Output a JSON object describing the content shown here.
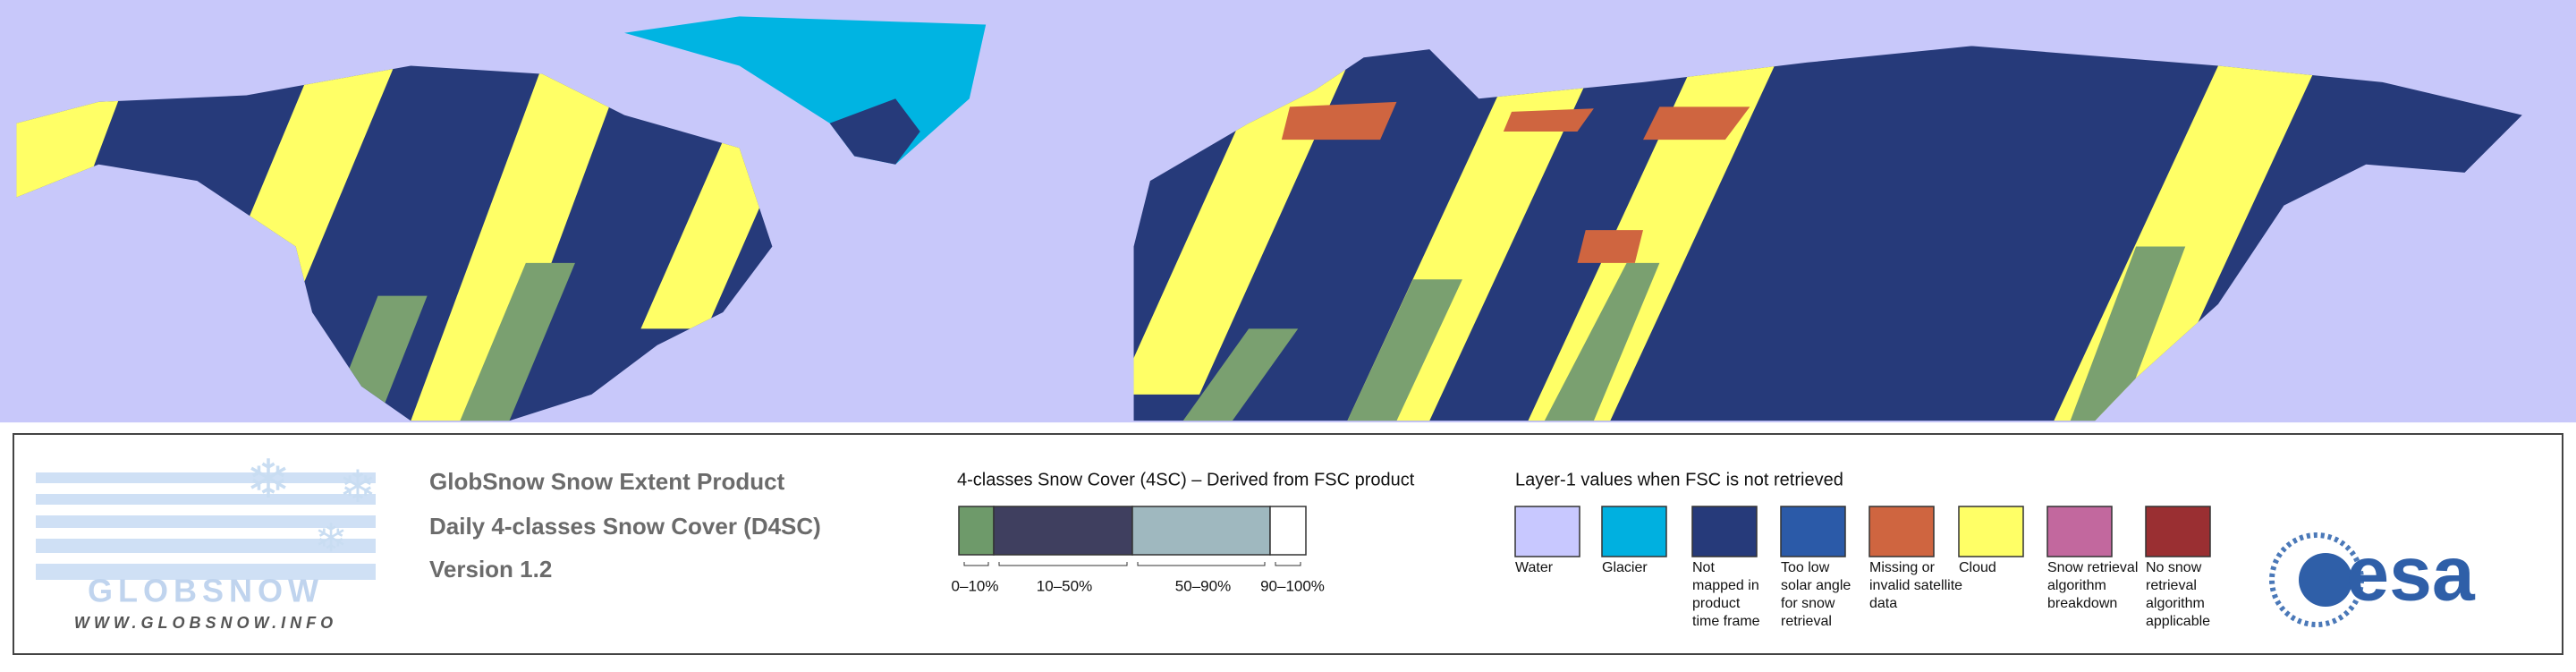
{
  "logo": {
    "name": "GLOBSNOW",
    "url": "WWW.GLOBSNOW.INFO"
  },
  "product": {
    "title": "GlobSnow Snow Extent Product",
    "subtitle": "Daily 4-classes Snow Cover (D4SC)",
    "version": "Version 1.2"
  },
  "colorbar": {
    "title": "4-classes Snow Cover (4SC) – Derived from FSC product",
    "classes": [
      {
        "label": "0–10%",
        "color": "#6e9a6a"
      },
      {
        "label": "10–50%",
        "color": "#3f3f5f"
      },
      {
        "label": "50–90%",
        "color": "#9fb8bf"
      },
      {
        "label": "90–100%",
        "color": "#ffffff"
      }
    ]
  },
  "layer1": {
    "title": "Layer-1 values when FSC is not retrieved",
    "items": [
      {
        "color": "#c8c8ff",
        "lines": [
          "Water"
        ]
      },
      {
        "color": "#00b0e0",
        "lines": [
          "Glacier"
        ]
      },
      {
        "color": "#263a7a",
        "lines": [
          "Not",
          "mapped in",
          "product",
          "time frame"
        ]
      },
      {
        "color": "#2b5aa8",
        "lines": [
          "Too low",
          "solar angle",
          "for snow",
          "retrieval"
        ]
      },
      {
        "color": "#cf6540",
        "lines": [
          "Missing or",
          "invalid satellite",
          "data"
        ]
      },
      {
        "color": "#ffff66",
        "lines": [
          "Cloud"
        ]
      },
      {
        "color": "#c2689e",
        "lines": [
          "Snow retrieval",
          "algorithm",
          "breakdown"
        ]
      },
      {
        "color": "#9a2f32",
        "lines": [
          "No snow",
          "retrieval",
          "algorithm",
          "applicable"
        ]
      }
    ]
  },
  "agency": "esa"
}
